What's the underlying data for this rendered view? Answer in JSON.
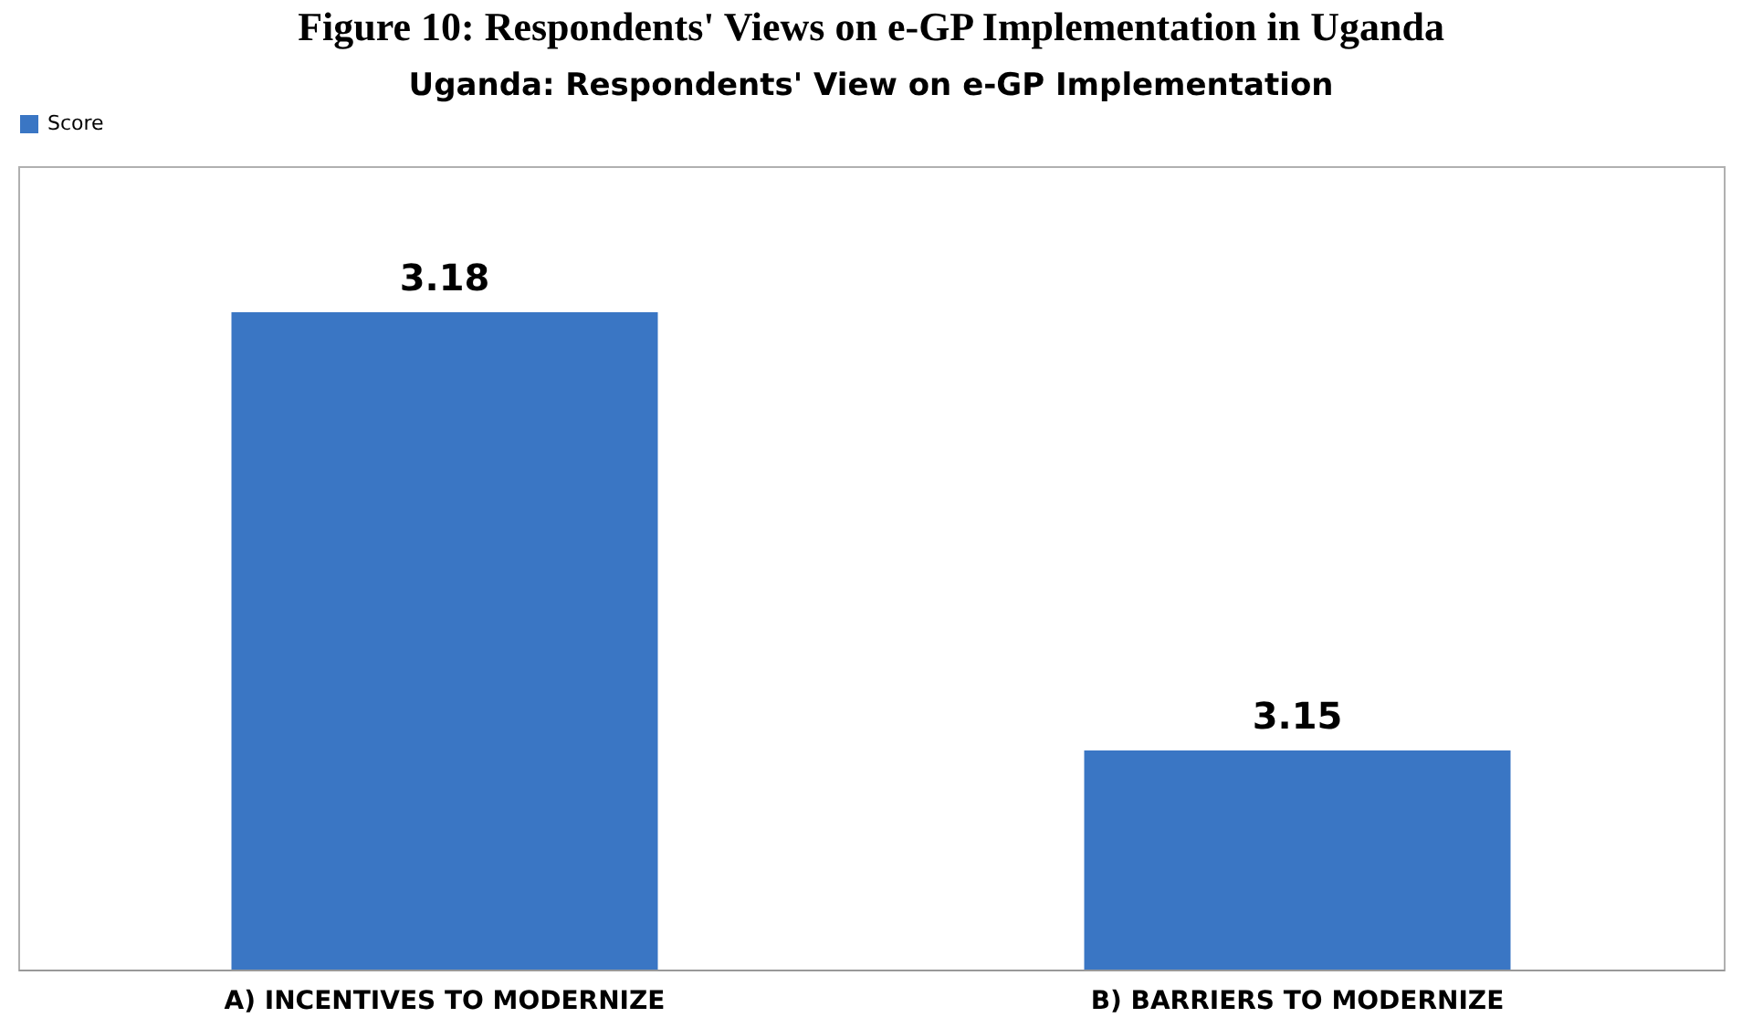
{
  "chart_data": {
    "type": "bar",
    "title": "Figure 10: Respondents' Views on e-GP Implementation in Uganda",
    "subtitle": "Uganda: Respondents' View on e-GP Implementation",
    "categories": [
      "A) INCENTIVES TO MODERNIZE",
      "B) BARRIERS TO MODERNIZE"
    ],
    "series": [
      {
        "name": "Score",
        "color": "#3a76c4",
        "values": [
          3.18,
          3.15
        ]
      }
    ],
    "ylim": [
      3.135,
      3.19
    ],
    "data_labels": true,
    "legend": "top",
    "grid": false,
    "tick_labels": "x"
  }
}
